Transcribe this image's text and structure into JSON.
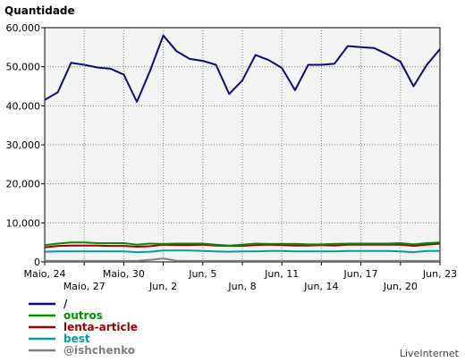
{
  "chart_data": {
    "type": "line",
    "title": "Quantidade",
    "ylim": [
      0,
      60000
    ],
    "yticks": [
      0,
      10000,
      20000,
      30000,
      40000,
      50000,
      60000
    ],
    "ytick_labels": [
      "0",
      "10,000",
      "20,000",
      "30,000",
      "40,000",
      "50,000",
      "60,000"
    ],
    "x": [
      "Maio, 24",
      "Maio, 25",
      "Maio, 26",
      "Maio, 27",
      "Maio, 28",
      "Maio, 29",
      "Maio, 30",
      "Maio, 31",
      "Jun, 1",
      "Jun, 2",
      "Jun, 3",
      "Jun, 4",
      "Jun, 5",
      "Jun, 6",
      "Jun, 7",
      "Jun, 8",
      "Jun, 9",
      "Jun, 10",
      "Jun, 11",
      "Jun, 12",
      "Jun, 13",
      "Jun, 14",
      "Jun, 15",
      "Jun, 16",
      "Jun, 17",
      "Jun, 18",
      "Jun, 19",
      "Jun, 20",
      "Jun, 21",
      "Jun, 22",
      "Jun, 23"
    ],
    "x_tick_labels": [
      {
        "index": 0,
        "label": "Maio, 24",
        "row": 0
      },
      {
        "index": 3,
        "label": "Maio, 27",
        "row": 1
      },
      {
        "index": 6,
        "label": "Maio, 30",
        "row": 0
      },
      {
        "index": 9,
        "label": "Jun, 2",
        "row": 1
      },
      {
        "index": 12,
        "label": "Jun, 5",
        "row": 0
      },
      {
        "index": 15,
        "label": "Jun, 8",
        "row": 1
      },
      {
        "index": 18,
        "label": "Jun, 11",
        "row": 0
      },
      {
        "index": 21,
        "label": "Jun, 14",
        "row": 1
      },
      {
        "index": 24,
        "label": "Jun, 17",
        "row": 0
      },
      {
        "index": 27,
        "label": "Jun, 20",
        "row": 1
      },
      {
        "index": 30,
        "label": "Jun, 23",
        "row": 0
      }
    ],
    "grid": true,
    "series": [
      {
        "name": "/",
        "color": "#0a0a78",
        "values": [
          41500,
          43500,
          51000,
          50500,
          49800,
          49500,
          48000,
          41000,
          49000,
          58000,
          54000,
          52000,
          51500,
          50500,
          43000,
          46500,
          53000,
          51700,
          49700,
          44000,
          50500,
          50500,
          50800,
          55300,
          55000,
          54800,
          53200,
          51300,
          45000,
          50500,
          54500
        ]
      },
      {
        "name": "outros",
        "color": "#009000",
        "values": [
          4300,
          4700,
          5000,
          5000,
          4800,
          4800,
          4800,
          4400,
          4700,
          4600,
          4700,
          4700,
          4700,
          4400,
          4200,
          4400,
          4700,
          4600,
          4600,
          4600,
          4500,
          4500,
          4600,
          4700,
          4700,
          4700,
          4700,
          4800,
          4500,
          4800,
          5000
        ]
      },
      {
        "name": "lenta-article",
        "color": "#a00000",
        "values": [
          3700,
          4100,
          4200,
          4200,
          4200,
          4100,
          4100,
          3900,
          4000,
          4400,
          4300,
          4300,
          4400,
          4200,
          4100,
          4100,
          4300,
          4400,
          4300,
          4200,
          4200,
          4300,
          4200,
          4400,
          4400,
          4400,
          4400,
          4400,
          4100,
          4400,
          4700
        ]
      },
      {
        "name": "best",
        "color": "#00a0a0",
        "values": [
          2600,
          2700,
          2700,
          2700,
          2700,
          2700,
          2700,
          2500,
          2600,
          2900,
          2900,
          2900,
          2800,
          2700,
          2600,
          2700,
          2700,
          2800,
          2800,
          2700,
          2700,
          2700,
          2700,
          2800,
          2800,
          2800,
          2800,
          2700,
          2500,
          2800,
          2800
        ]
      },
      {
        "name": "@ishchenko",
        "color": "#808080",
        "values": [
          250,
          250,
          250,
          250,
          250,
          250,
          250,
          250,
          500,
          900,
          300,
          250,
          250,
          250,
          250,
          250,
          250,
          250,
          250,
          250,
          250,
          250,
          250,
          250,
          250,
          250,
          250,
          250,
          250,
          250,
          250
        ]
      }
    ]
  },
  "watermark": "LiveInternet"
}
